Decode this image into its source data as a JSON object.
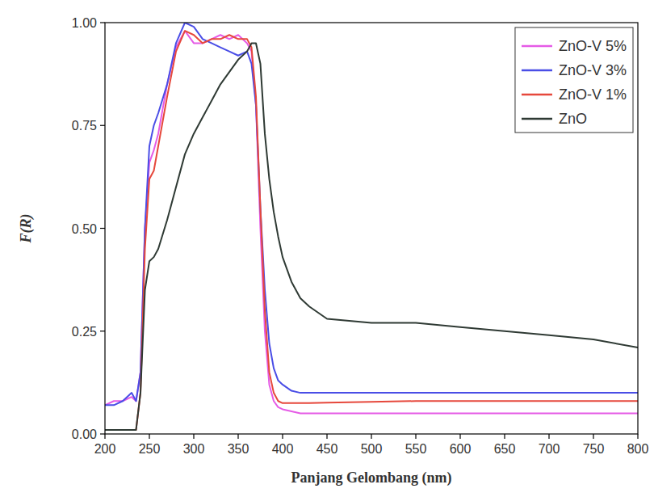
{
  "chart_data": {
    "type": "line",
    "x_label": "Panjang Gelombang (nm)",
    "y_label": "F(R)",
    "x": [
      200,
      210,
      220,
      230,
      235,
      240,
      245,
      250,
      255,
      260,
      270,
      280,
      290,
      300,
      310,
      320,
      330,
      340,
      350,
      360,
      365,
      370,
      375,
      380,
      385,
      390,
      395,
      400,
      410,
      420,
      430,
      450,
      500,
      550,
      600,
      650,
      700,
      750,
      800
    ],
    "series": [
      {
        "name": "ZnO-V 5%",
        "color": "#e55be6",
        "values": [
          0.07,
          0.08,
          0.08,
          0.09,
          0.08,
          0.15,
          0.5,
          0.66,
          0.69,
          0.73,
          0.85,
          0.94,
          0.98,
          0.95,
          0.95,
          0.96,
          0.97,
          0.96,
          0.97,
          0.95,
          0.93,
          0.8,
          0.5,
          0.25,
          0.12,
          0.08,
          0.065,
          0.06,
          0.055,
          0.05,
          0.05,
          0.05,
          0.05,
          0.05,
          0.05,
          0.05,
          0.05,
          0.05,
          0.05
        ]
      },
      {
        "name": "ZnO-V 3%",
        "color": "#4a4ee6",
        "values": [
          0.07,
          0.07,
          0.08,
          0.1,
          0.08,
          0.15,
          0.5,
          0.7,
          0.75,
          0.78,
          0.85,
          0.95,
          1.0,
          0.99,
          0.96,
          0.95,
          0.94,
          0.93,
          0.92,
          0.93,
          0.9,
          0.8,
          0.55,
          0.35,
          0.22,
          0.16,
          0.13,
          0.12,
          0.105,
          0.1,
          0.1,
          0.1,
          0.1,
          0.1,
          0.1,
          0.1,
          0.1,
          0.1,
          0.1
        ]
      },
      {
        "name": "ZnO-V 1%",
        "color": "#e6483c",
        "values": [
          0.01,
          0.01,
          0.01,
          0.01,
          0.01,
          0.1,
          0.45,
          0.62,
          0.64,
          0.7,
          0.82,
          0.93,
          0.98,
          0.97,
          0.95,
          0.96,
          0.96,
          0.97,
          0.96,
          0.96,
          0.94,
          0.82,
          0.55,
          0.3,
          0.15,
          0.1,
          0.08,
          0.075,
          0.075,
          0.075,
          0.075,
          0.076,
          0.078,
          0.08,
          0.08,
          0.08,
          0.08,
          0.08,
          0.08
        ]
      },
      {
        "name": "ZnO",
        "color": "#2f3a34",
        "values": [
          0.01,
          0.01,
          0.01,
          0.01,
          0.01,
          0.1,
          0.35,
          0.42,
          0.43,
          0.45,
          0.52,
          0.6,
          0.68,
          0.73,
          0.77,
          0.81,
          0.85,
          0.88,
          0.91,
          0.93,
          0.95,
          0.95,
          0.9,
          0.73,
          0.62,
          0.54,
          0.48,
          0.43,
          0.37,
          0.33,
          0.31,
          0.28,
          0.27,
          0.27,
          0.26,
          0.25,
          0.24,
          0.23,
          0.21
        ]
      }
    ],
    "xlim": [
      200,
      800
    ],
    "ylim": [
      0,
      1
    ],
    "xticks": [
      200,
      250,
      300,
      350,
      400,
      450,
      500,
      550,
      600,
      650,
      700,
      750,
      800
    ],
    "yticks": [
      {
        "value": 0,
        "label": "0.00"
      },
      {
        "value": 0.25,
        "label": "0.25"
      },
      {
        "value": 0.5,
        "label": "0.50"
      },
      {
        "value": 0.75,
        "label": "0.75"
      },
      {
        "value": 1,
        "label": "1.00"
      }
    ],
    "grid": false,
    "legend": "upper right"
  }
}
